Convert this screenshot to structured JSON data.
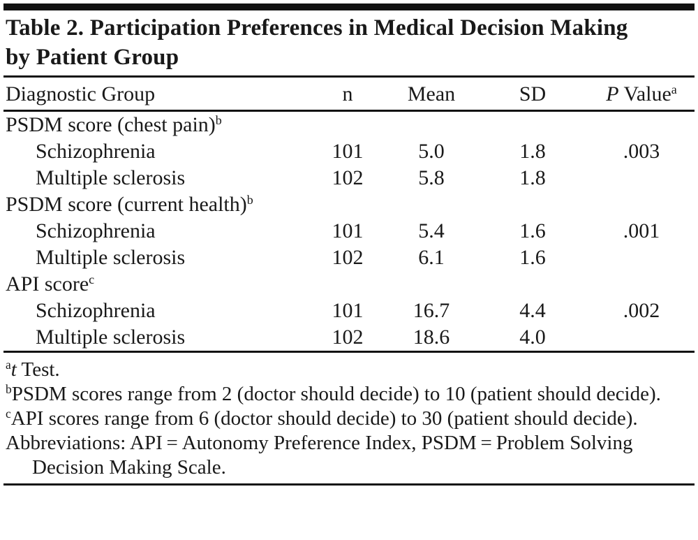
{
  "title": {
    "line1": "Table 2. Participation Preferences in Medical Decision Making",
    "line2": "by Patient Group"
  },
  "table": {
    "header": {
      "diagnostic_group": "Diagnostic Group",
      "n": "n",
      "mean": "Mean",
      "sd": "SD",
      "p_value_italic": "P",
      "p_value_rest": " Value",
      "p_value_sup": "a"
    },
    "rows": [
      {
        "label": "PSDM score (chest pain)",
        "sup": "b"
      },
      {
        "label": "Schizophrenia",
        "indent": true,
        "n": "101",
        "mean": "5.0",
        "sd": "1.8",
        "p": ".003"
      },
      {
        "label": "Multiple sclerosis",
        "indent": true,
        "n": "102",
        "mean": "5.8",
        "sd": "1.8"
      },
      {
        "label": "PSDM score (current health)",
        "sup": "b"
      },
      {
        "label": "Schizophrenia",
        "indent": true,
        "n": "101",
        "mean": "5.4",
        "sd": "1.6",
        "p": ".001"
      },
      {
        "label": "Multiple sclerosis",
        "indent": true,
        "n": "102",
        "mean": "6.1",
        "sd": "1.6"
      },
      {
        "label": "API score",
        "sup": "c"
      },
      {
        "label": "Schizophrenia",
        "indent": true,
        "n": "101",
        "mean": "16.7",
        "sd": "4.4",
        "p": ".002"
      },
      {
        "label": "Multiple sclerosis",
        "indent": true,
        "n": "102",
        "mean": "18.6",
        "sd": "4.0"
      }
    ]
  },
  "footnotes": [
    {
      "sup": "a",
      "italic": "t",
      "text": " Test."
    },
    {
      "sup": "b",
      "text": "PSDM scores range from 2 (doctor should decide) to 10 (patient should decide)."
    },
    {
      "sup": "c",
      "text": "API scores range from 6 (doctor should decide) to 30 (patient should decide)."
    },
    {
      "text": "Abbreviations: API = Autonomy Preference Index, PSDM = Problem Solving Decision Making Scale."
    }
  ],
  "chart_data": {
    "type": "table",
    "title": "Table 2. Participation Preferences in Medical Decision Making by Patient Group",
    "columns": [
      "Diagnostic Group",
      "n",
      "Mean",
      "SD",
      "P Value"
    ],
    "rows": [
      [
        "PSDM score (chest pain)",
        null,
        null,
        null,
        null
      ],
      [
        "Schizophrenia",
        101,
        5.0,
        1.8,
        0.003
      ],
      [
        "Multiple sclerosis",
        102,
        5.8,
        1.8,
        null
      ],
      [
        "PSDM score (current health)",
        null,
        null,
        null,
        null
      ],
      [
        "Schizophrenia",
        101,
        5.4,
        1.6,
        0.001
      ],
      [
        "Multiple sclerosis",
        102,
        6.1,
        1.6,
        null
      ],
      [
        "API score",
        null,
        null,
        null,
        null
      ],
      [
        "Schizophrenia",
        101,
        16.7,
        4.4,
        0.002
      ],
      [
        "Multiple sclerosis",
        102,
        18.6,
        4.0,
        null
      ]
    ],
    "footnotes": {
      "a": "t Test.",
      "b": "PSDM scores range from 2 (doctor should decide) to 10 (patient should decide).",
      "c": "API scores range from 6 (doctor should decide) to 30 (patient should decide)."
    }
  }
}
